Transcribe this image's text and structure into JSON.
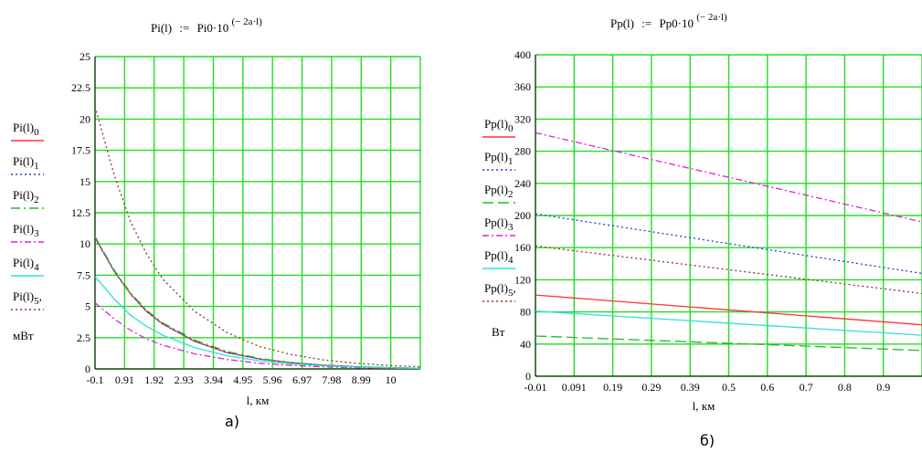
{
  "chart_data": [
    {
      "type": "line",
      "panel_label": "а)",
      "formula": {
        "lhs": "Pi(l)",
        "rhs_prefix": "Pi0·10",
        "exponent": "(− 2a·l)"
      },
      "xlabel": "l, км",
      "unit": "мВт",
      "xlim": [
        -0.1,
        10
      ],
      "ylim": [
        0,
        25
      ],
      "x_ticks": [
        "-0.1",
        "0.91",
        "1.92",
        "2.93",
        "3.94",
        "4.95",
        "5.96",
        "6.97",
        "7.98",
        "8.99",
        "10"
      ],
      "y_ticks": [
        "0",
        "2.5",
        "5",
        "7.5",
        "10",
        "12.5",
        "15",
        "17.5",
        "20",
        "22.5",
        "25"
      ],
      "grid": true,
      "legend_placement": "left",
      "series": [
        {
          "name": "Pi(l)",
          "sub": "0",
          "color": "#ff3333",
          "dash": "solid",
          "x": [
            -0.1,
            0.5,
            1,
            1.5,
            2,
            3,
            4,
            5,
            6,
            7,
            8,
            9,
            10
          ],
          "y": [
            10.5,
            7.8,
            6.0,
            4.6,
            3.6,
            2.2,
            1.3,
            0.8,
            0.5,
            0.3,
            0.18,
            0.1,
            0.05
          ]
        },
        {
          "name": "Pi(l)",
          "sub": "1",
          "color": "#1f3fd6",
          "dash": "dot",
          "x": [
            -0.1,
            0.5,
            1,
            1.5,
            2,
            3,
            4,
            5,
            6,
            7,
            8,
            9,
            10
          ],
          "y": [
            10.5,
            7.8,
            6.0,
            4.6,
            3.6,
            2.2,
            1.3,
            0.8,
            0.5,
            0.3,
            0.18,
            0.1,
            0.05
          ]
        },
        {
          "name": "Pi(l)",
          "sub": "2",
          "color": "#22bb22",
          "dash": "dashdot",
          "x": [
            -0.1,
            0.5,
            1,
            1.5,
            2,
            3,
            4,
            5,
            6,
            7,
            8,
            9,
            10
          ],
          "y": [
            10.6,
            7.9,
            6.1,
            4.7,
            3.7,
            2.3,
            1.4,
            0.85,
            0.5,
            0.3,
            0.18,
            0.1,
            0.05
          ]
        },
        {
          "name": "Pi(l)",
          "sub": "3",
          "color": "#dd22dd",
          "dash": "dashdot2",
          "x": [
            -0.1,
            0.5,
            1,
            1.5,
            2,
            3,
            4,
            5,
            6,
            7,
            8,
            9,
            10
          ],
          "y": [
            5.3,
            4.0,
            3.1,
            2.4,
            1.9,
            1.2,
            0.75,
            0.45,
            0.28,
            0.17,
            0.1,
            0.06,
            0.03
          ]
        },
        {
          "name": "Pi(l)",
          "sub": "4",
          "color": "#33dddd",
          "dash": "solid",
          "x": [
            -0.1,
            0.5,
            1,
            1.5,
            2,
            3,
            4,
            5,
            6,
            7,
            8,
            9,
            10
          ],
          "y": [
            7.4,
            5.6,
            4.3,
            3.4,
            2.7,
            1.7,
            1.05,
            0.65,
            0.4,
            0.25,
            0.15,
            0.09,
            0.05
          ]
        },
        {
          "name": "Pi(l)",
          "sub": "5",
          "color": "#8b3a1a",
          "dash": "dot",
          "x": [
            -0.1,
            0.5,
            1,
            1.5,
            2,
            3,
            4,
            5,
            6,
            7,
            8,
            9,
            10
          ],
          "y": [
            21.0,
            15.5,
            11.8,
            9.2,
            7.2,
            4.6,
            2.9,
            1.8,
            1.15,
            0.72,
            0.45,
            0.28,
            0.17
          ]
        }
      ]
    },
    {
      "type": "line",
      "panel_label": "б)",
      "formula": {
        "lhs": "Pp(l)",
        "rhs_prefix": "Pp0·10",
        "exponent": "(− 2a·l)"
      },
      "xlabel": "l, км",
      "unit": "Вт",
      "xlim": [
        -0.01,
        1
      ],
      "ylim": [
        0,
        400
      ],
      "x_ticks": [
        "-0.01",
        "0.091",
        "0.19",
        "0.29",
        "0.39",
        "0.5",
        "0.6",
        "0.7",
        "0.8",
        "0.9"
      ],
      "y_ticks": [
        "0",
        "40",
        "80",
        "120",
        "160",
        "200",
        "240",
        "280",
        "320",
        "360",
        "400"
      ],
      "grid": true,
      "legend_placement": "left",
      "series": [
        {
          "name": "Pp(l)",
          "sub": "0",
          "color": "#ff3333",
          "dash": "solid",
          "x": [
            -0.01,
            1
          ],
          "y": [
            101,
            64
          ]
        },
        {
          "name": "Pp(l)",
          "sub": "1",
          "color": "#1f3fd6",
          "dash": "dot",
          "x": [
            -0.01,
            1
          ],
          "y": [
            202,
            128
          ]
        },
        {
          "name": "Pp(l)",
          "sub": "2",
          "color": "#22bb22",
          "dash": "dash",
          "x": [
            -0.01,
            1
          ],
          "y": [
            50,
            32
          ]
        },
        {
          "name": "Pp(l)",
          "sub": "3",
          "color": "#dd22dd",
          "dash": "dashdot2",
          "x": [
            -0.01,
            1
          ],
          "y": [
            303,
            192
          ]
        },
        {
          "name": "Pp(l)",
          "sub": "4",
          "color": "#33dddd",
          "dash": "solid",
          "x": [
            -0.01,
            1
          ],
          "y": [
            81,
            51
          ]
        },
        {
          "name": "Pp(l)",
          "sub": "5",
          "color": "#8b3a1a",
          "dash": "dot",
          "x": [
            -0.01,
            1
          ],
          "y": [
            162,
            103
          ]
        }
      ]
    }
  ]
}
